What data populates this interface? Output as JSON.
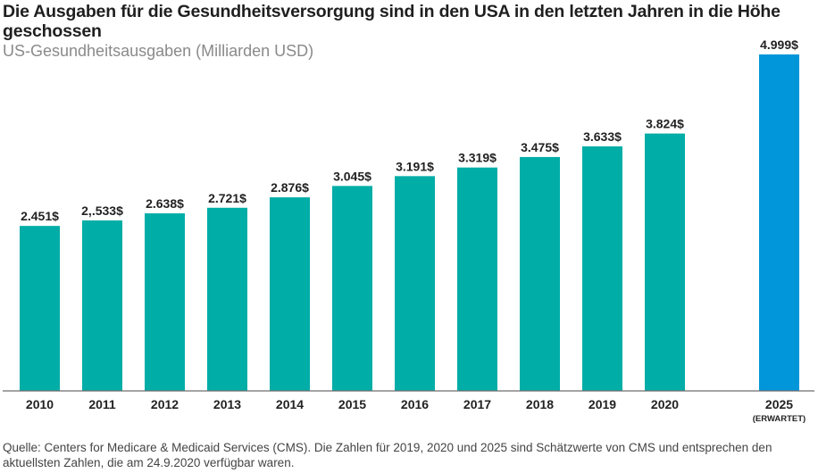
{
  "chart_data": {
    "type": "bar",
    "title": "Die Ausgaben für die Gesundheitsversorgung sind in den USA in den letzten Jahren in die Höhe geschossen",
    "subtitle": "US-Gesundheitsausgaben (Milliarden USD)",
    "xlabel": "",
    "ylabel": "",
    "ylim": [
      0,
      5000
    ],
    "grid": false,
    "categories": [
      "2010",
      "2011",
      "2012",
      "2013",
      "2014",
      "2015",
      "2016",
      "2017",
      "2018",
      "2019",
      "2020",
      "2025"
    ],
    "category_sublabels": [
      "",
      "",
      "",
      "",
      "",
      "",
      "",
      "",
      "",
      "",
      "",
      "(ERWARTET)"
    ],
    "values": [
      2451,
      2533,
      2638,
      2721,
      2876,
      3045,
      3191,
      3319,
      3475,
      3633,
      3824,
      4999
    ],
    "data_labels": [
      "2.451$",
      "2,.533$",
      "2.638$",
      "2.721$",
      "2.876$",
      "3.045$",
      "3.191$",
      "3.319$",
      "3.475$",
      "3.633$",
      "3.824$",
      "4.999$"
    ],
    "bar_colors": [
      "#00ada7",
      "#00ada7",
      "#00ada7",
      "#00ada7",
      "#00ada7",
      "#00ada7",
      "#00ada7",
      "#00ada7",
      "#00ada7",
      "#00ada7",
      "#00ada7",
      "#0096d9"
    ],
    "axis_color": "#6e6e6e"
  },
  "footnote": "Quelle: Centers for Medicare & Medicaid Services (CMS). Die Zahlen für 2019, 2020 und 2025 sind Schätzwerte von CMS und entsprechen den aktuellsten Zahlen, die am 24.9.2020 verfügbar waren."
}
